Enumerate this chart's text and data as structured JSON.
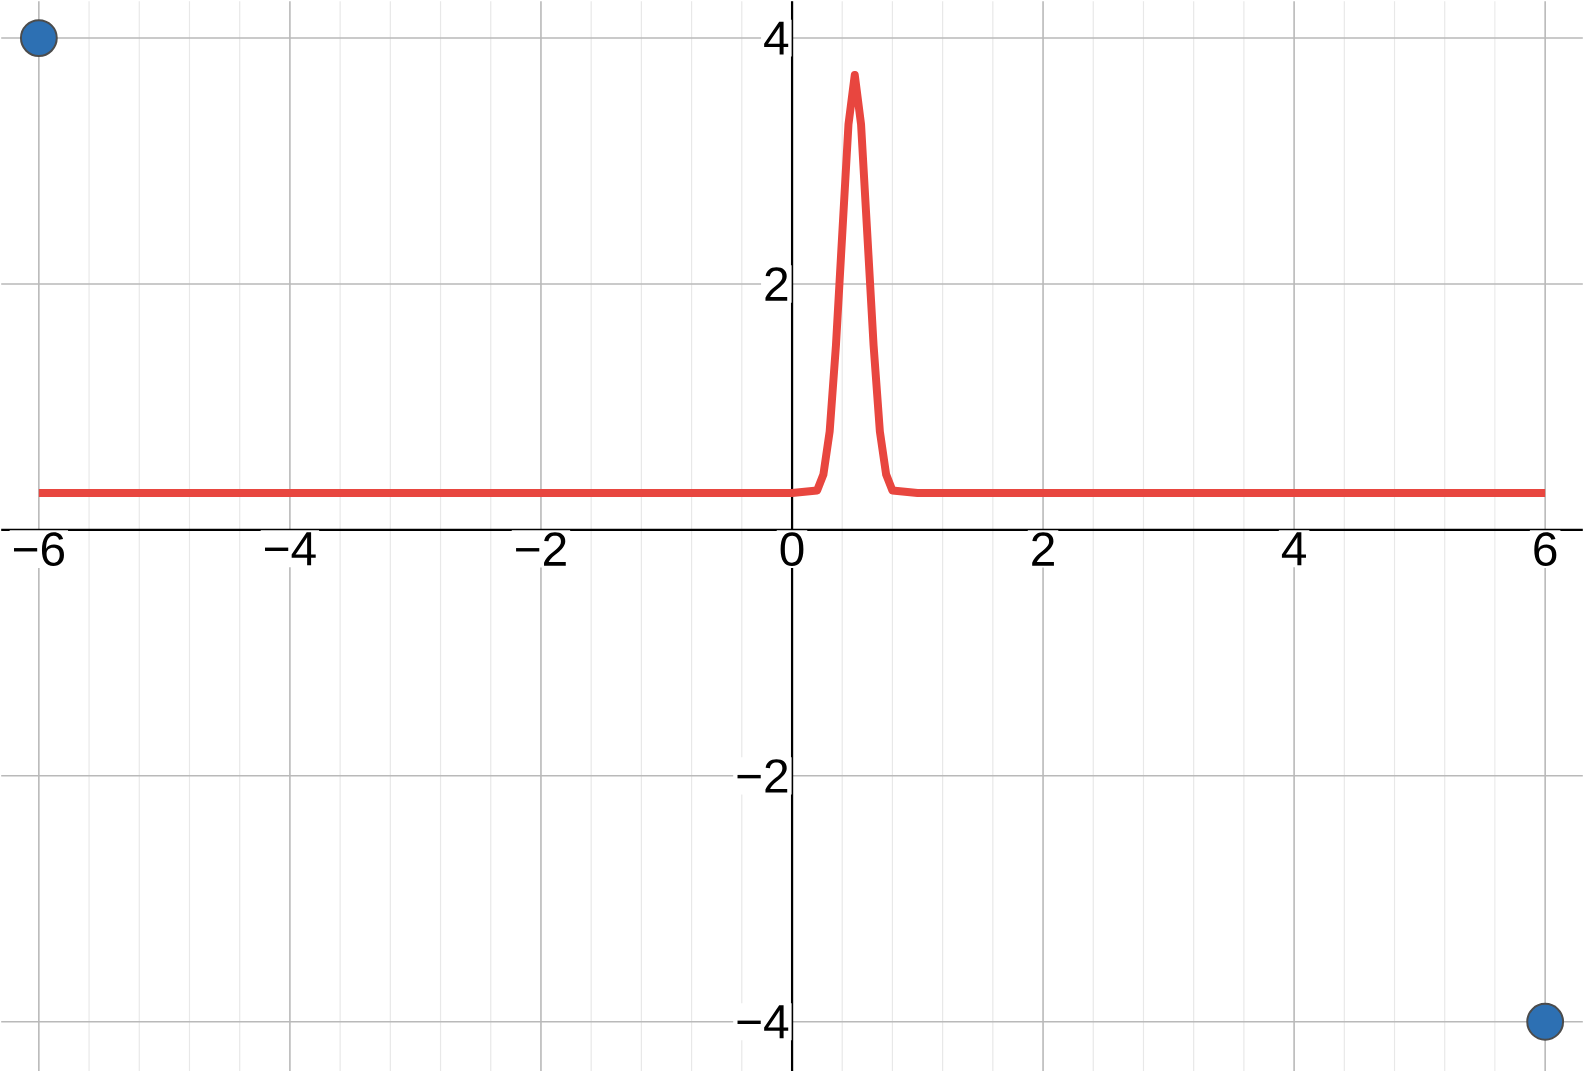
{
  "chart_data": {
    "type": "line",
    "xlim": [
      -6.3,
      6.3
    ],
    "ylim": [
      -4.4,
      4.3
    ],
    "xticks": [
      {
        "value": -6,
        "label": "−6"
      },
      {
        "value": -4,
        "label": "−4"
      },
      {
        "value": -2,
        "label": "−2"
      },
      {
        "value": 0,
        "label": "0"
      },
      2,
      4,
      6
    ],
    "yticks": [
      {
        "value": -4,
        "label": "−4"
      },
      {
        "value": -2,
        "label": "−2"
      },
      2,
      4
    ],
    "grid": true,
    "series": [
      {
        "color": "#e8463f",
        "x": [
          -6,
          0,
          0.2,
          0.25,
          0.3,
          0.35,
          0.4,
          0.45,
          0.5,
          0.55,
          0.6,
          0.65,
          0.7,
          0.75,
          0.8,
          1,
          6
        ],
        "values": [
          0.3,
          0.3,
          0.32,
          0.45,
          0.8,
          1.5,
          2.4,
          3.3,
          3.7,
          3.3,
          2.4,
          1.5,
          0.8,
          0.45,
          0.32,
          0.3,
          0.3
        ]
      },
      {
        "type": "scatter",
        "color": "#2d70b3",
        "marker": "circle",
        "x": [
          -6,
          6
        ],
        "values": [
          4,
          -4
        ]
      }
    ]
  }
}
